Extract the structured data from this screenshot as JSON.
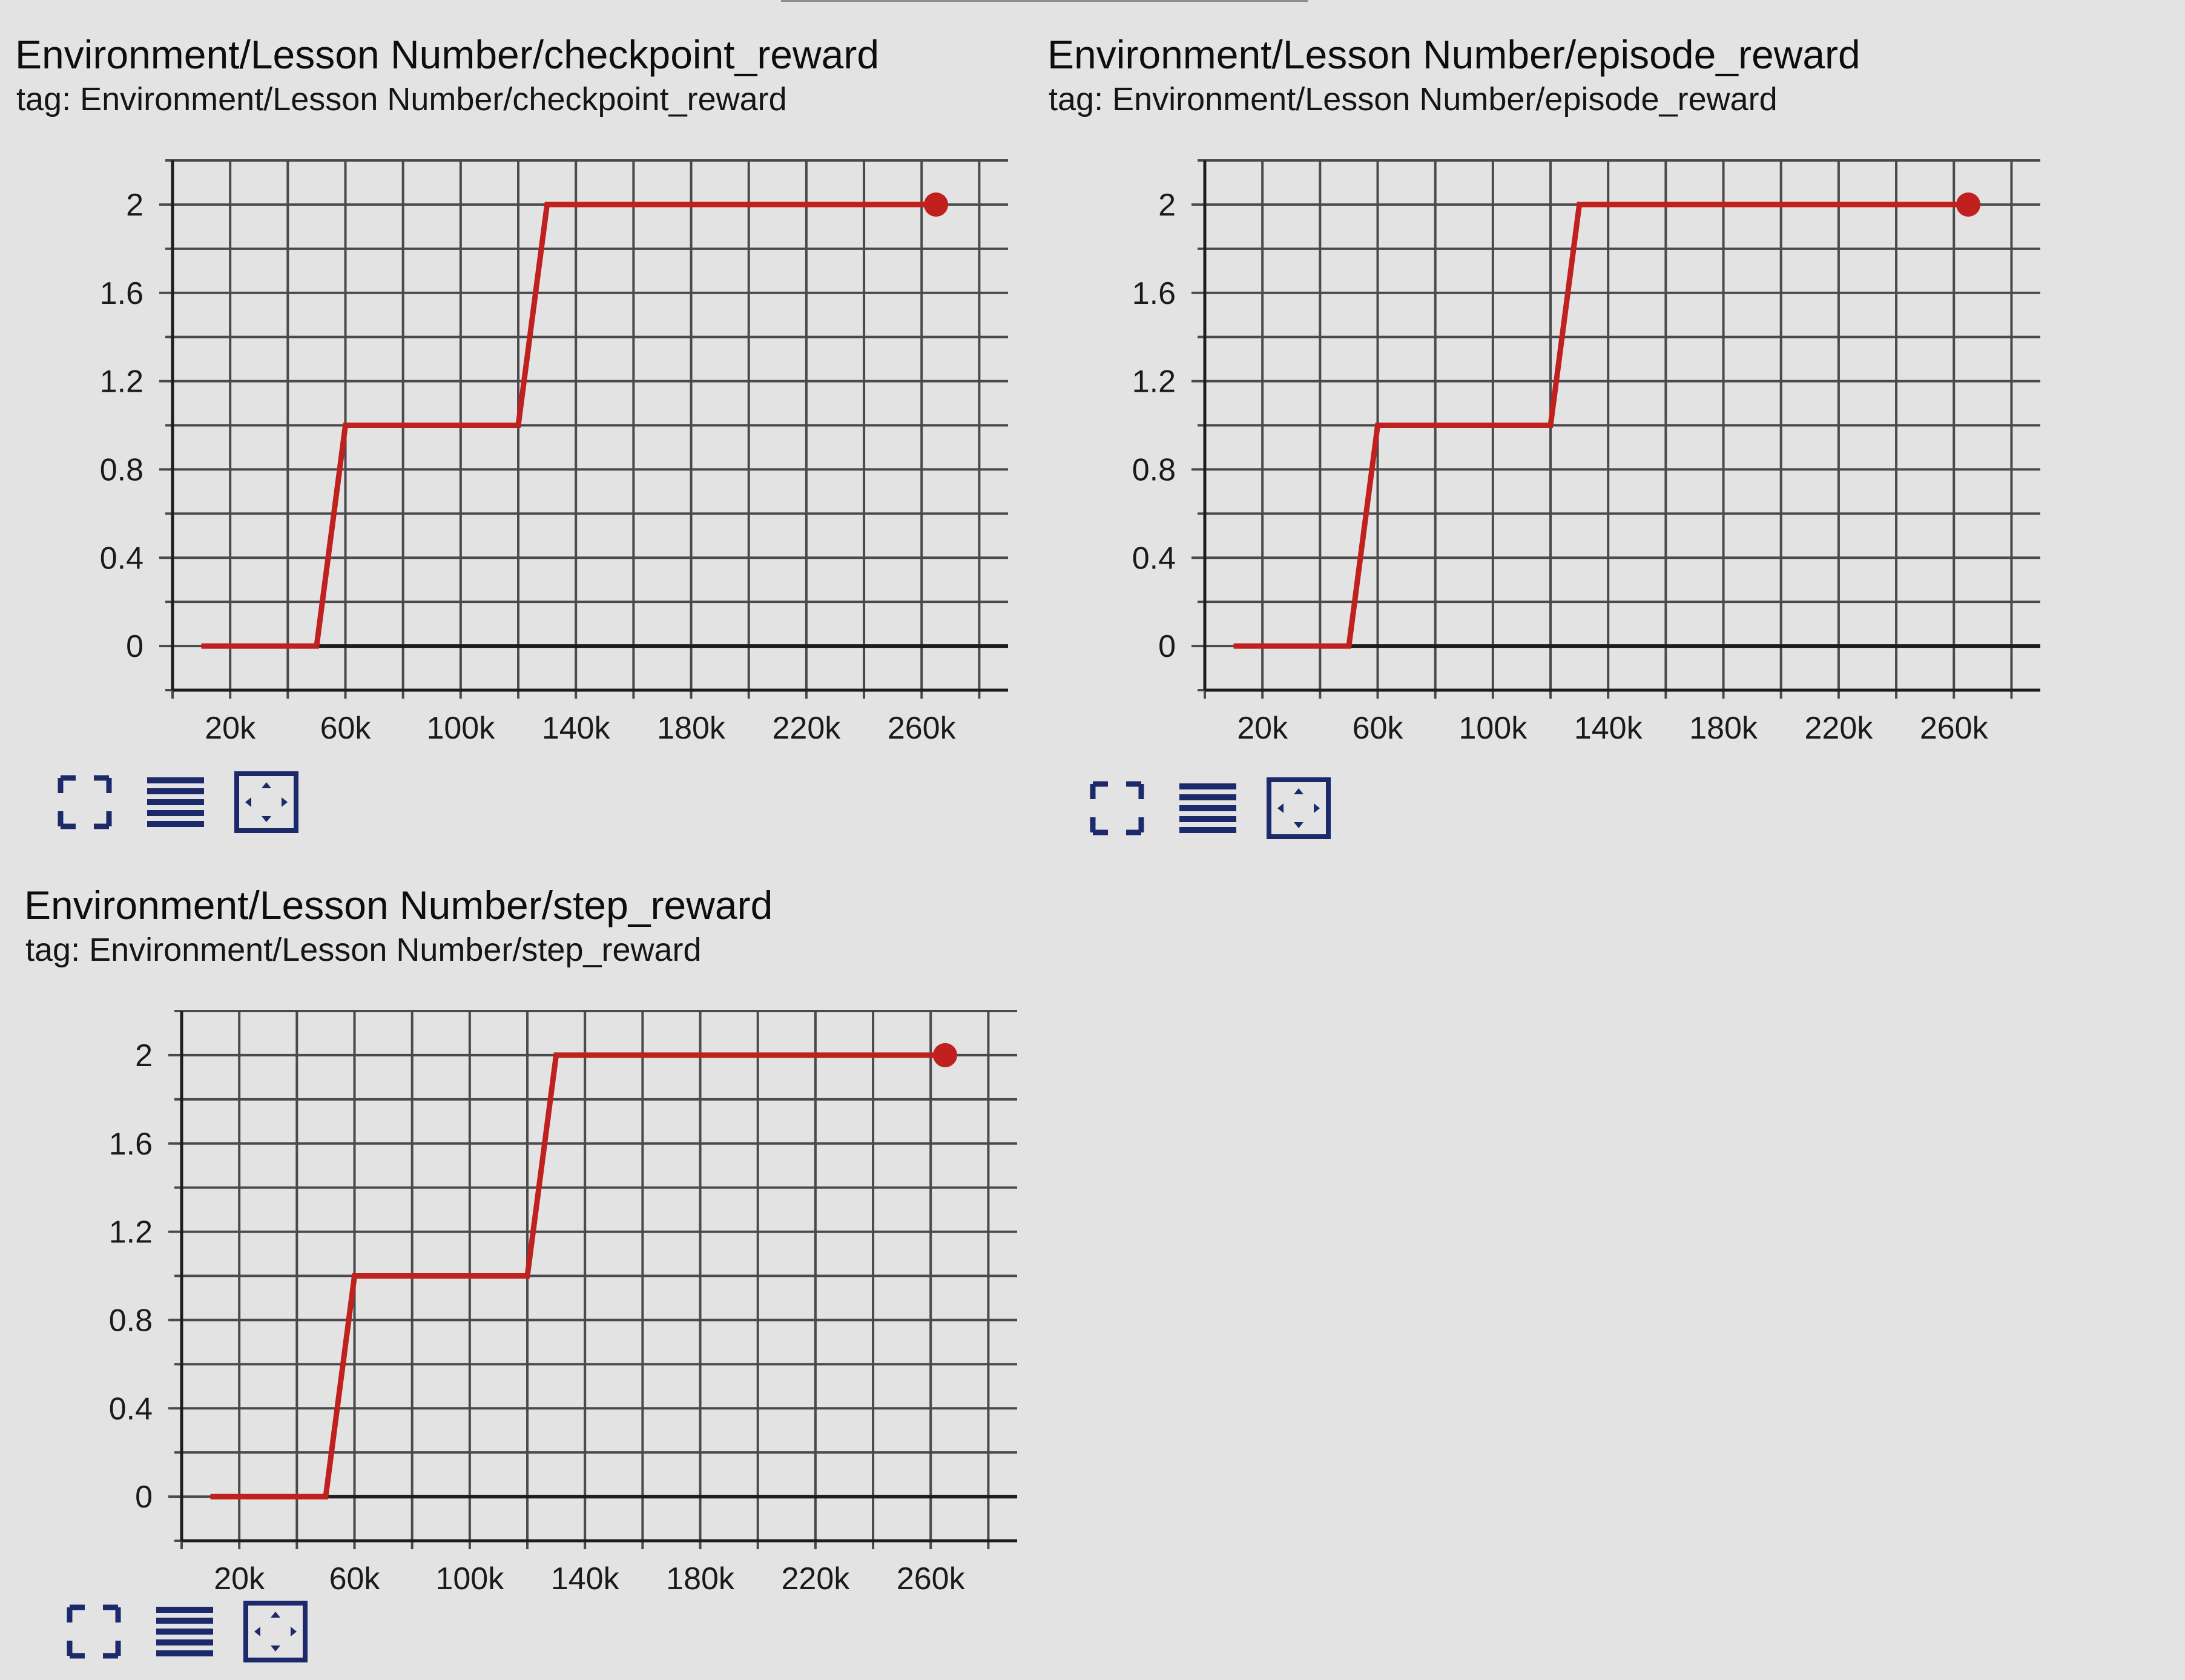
{
  "colors": {
    "background": "#e3e3e3",
    "series": "#c0201e",
    "grid": "#4a4a4a",
    "zero_line": "#1d1d1d",
    "icon": "#1c2a6b"
  },
  "toolbar": {
    "icons": [
      "fullscreen-icon",
      "data-table-icon",
      "fit-domain-icon"
    ]
  },
  "charts": [
    {
      "title": "Environment/Lesson Number/checkpoint_reward",
      "tag": "tag: Environment/Lesson Number/checkpoint_reward"
    },
    {
      "title": "Environment/Lesson Number/episode_reward",
      "tag": "tag: Environment/Lesson Number/episode_reward"
    },
    {
      "title": "Environment/Lesson Number/step_reward",
      "tag": "tag: Environment/Lesson Number/step_reward"
    }
  ],
  "chart_data": [
    {
      "type": "line",
      "title": "Environment/Lesson Number/checkpoint_reward",
      "subtitle": "tag: Environment/Lesson Number/checkpoint_reward",
      "x": [
        10000,
        50000,
        60000,
        120000,
        130000,
        265000
      ],
      "y": [
        0,
        0,
        1,
        1,
        2,
        2
      ],
      "last_point": [
        265000,
        2
      ],
      "xlim": [
        0,
        290000
      ],
      "ylim": [
        -0.2,
        2.2
      ],
      "x_ticks": [
        20000,
        60000,
        100000,
        140000,
        180000,
        220000,
        260000
      ],
      "x_tick_labels": [
        "20k",
        "60k",
        "100k",
        "140k",
        "180k",
        "220k",
        "260k"
      ],
      "y_ticks": [
        0,
        0.4,
        0.8,
        1.2,
        1.6,
        2
      ],
      "y_tick_labels": [
        "0",
        "0.4",
        "0.8",
        "1.2",
        "1.6",
        "2"
      ],
      "grid": true
    },
    {
      "type": "line",
      "title": "Environment/Lesson Number/episode_reward",
      "subtitle": "tag: Environment/Lesson Number/episode_reward",
      "x": [
        10000,
        50000,
        60000,
        120000,
        130000,
        265000
      ],
      "y": [
        0,
        0,
        1,
        1,
        2,
        2
      ],
      "last_point": [
        265000,
        2
      ],
      "xlim": [
        0,
        290000
      ],
      "ylim": [
        -0.2,
        2.2
      ],
      "x_ticks": [
        20000,
        60000,
        100000,
        140000,
        180000,
        220000,
        260000
      ],
      "x_tick_labels": [
        "20k",
        "60k",
        "100k",
        "140k",
        "180k",
        "220k",
        "260k"
      ],
      "y_ticks": [
        0,
        0.4,
        0.8,
        1.2,
        1.6,
        2
      ],
      "y_tick_labels": [
        "0",
        "0.4",
        "0.8",
        "1.2",
        "1.6",
        "2"
      ],
      "grid": true
    },
    {
      "type": "line",
      "title": "Environment/Lesson Number/step_reward",
      "subtitle": "tag: Environment/Lesson Number/step_reward",
      "x": [
        10000,
        50000,
        60000,
        120000,
        130000,
        265000
      ],
      "y": [
        0,
        0,
        1,
        1,
        2,
        2
      ],
      "last_point": [
        265000,
        2
      ],
      "xlim": [
        0,
        290000
      ],
      "ylim": [
        -0.2,
        2.2
      ],
      "x_ticks": [
        20000,
        60000,
        100000,
        140000,
        180000,
        220000,
        260000
      ],
      "x_tick_labels": [
        "20k",
        "60k",
        "100k",
        "140k",
        "180k",
        "220k",
        "260k"
      ],
      "y_ticks": [
        0,
        0.4,
        0.8,
        1.2,
        1.6,
        2
      ],
      "y_tick_labels": [
        "0",
        "0.4",
        "0.8",
        "1.2",
        "1.6",
        "2"
      ],
      "grid": true
    }
  ]
}
